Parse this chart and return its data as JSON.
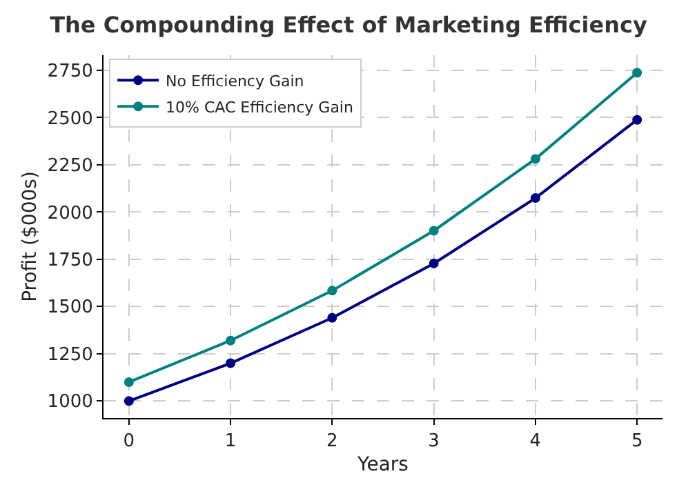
{
  "chart_data": {
    "type": "line",
    "title": "The Compounding Effect of Marketing Efficiency",
    "xlabel": "Years",
    "ylabel": "Profit ($000s)",
    "x": [
      0,
      1,
      2,
      3,
      4,
      5
    ],
    "series": [
      {
        "name": "No Efficiency Gain",
        "color": "#000080",
        "values": [
          1000,
          1200,
          1440,
          1728,
          2074,
          2488
        ]
      },
      {
        "name": "10% CAC Efficiency Gain",
        "color": "#008080",
        "values": [
          1100,
          1320,
          1584,
          1901,
          2281,
          2737
        ]
      }
    ],
    "xlim": [
      -0.25,
      5.25
    ],
    "xticks": [
      0,
      1,
      2,
      3,
      4,
      5
    ],
    "ylim": [
      910,
      2830
    ],
    "yticks": [
      1000,
      1250,
      1500,
      1750,
      2000,
      2250,
      2500,
      2750
    ],
    "grid": true,
    "legend": "top left",
    "marker": "circle",
    "line_style": "solid"
  }
}
